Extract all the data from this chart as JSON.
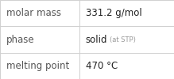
{
  "rows": [
    {
      "label": "molar mass",
      "value": "331.2 g/mol",
      "value_extra": null
    },
    {
      "label": "phase",
      "value": "solid",
      "value_extra": "(at STP)"
    },
    {
      "label": "melting point",
      "value": "470 °C",
      "value_extra": null
    }
  ],
  "background_color": "#ffffff",
  "border_color": "#d0d0d0",
  "label_color": "#555555",
  "value_color": "#222222",
  "extra_color": "#999999",
  "font_size": 8.5,
  "extra_font_size": 6.0,
  "col_split": 0.455
}
